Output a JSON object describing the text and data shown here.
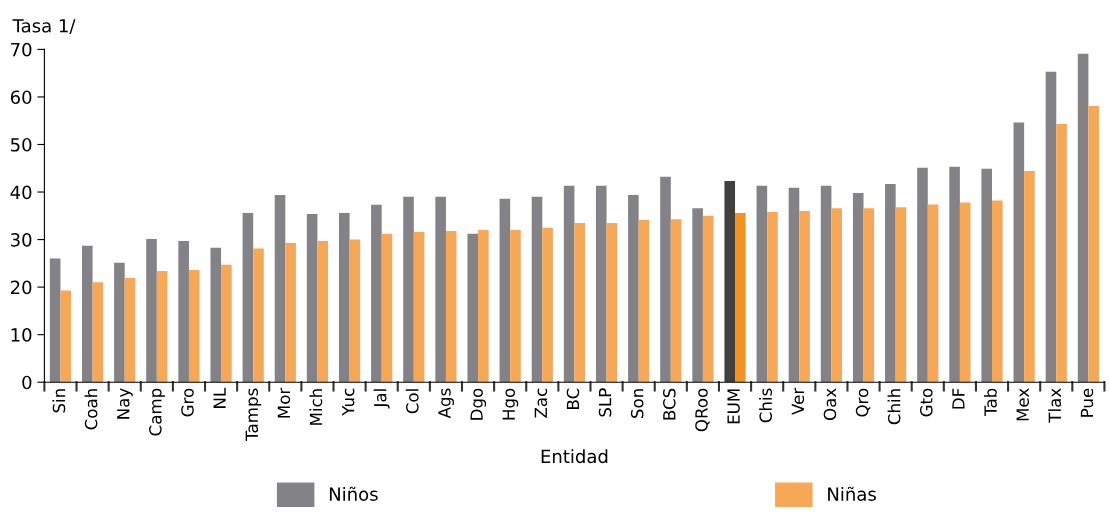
{
  "chart_data": {
    "type": "bar",
    "ylabel": "Tasa 1/",
    "xlabel": "Entidad",
    "categories": [
      "Sin",
      "Coah",
      "Nay",
      "Camp",
      "Gro",
      "NL",
      "Tamps",
      "Mor",
      "Mich",
      "Yuc",
      "Jal",
      "Col",
      "Ags",
      "Dgo",
      "Hgo",
      "Zac",
      "BC",
      "SLP",
      "Son",
      "BCS",
      "QRoo",
      "EUM",
      "Chis",
      "Ver",
      "Oax",
      "Qro",
      "Chih",
      "Gto",
      "DF",
      "Tab",
      "Mex",
      "Tlax",
      "Pue"
    ],
    "series": [
      {
        "name": "Niños",
        "color": "#838387",
        "colors": [
          "#838387",
          "#838387",
          "#838387",
          "#838387",
          "#838387",
          "#838387",
          "#838387",
          "#838387",
          "#838387",
          "#838387",
          "#838387",
          "#838387",
          "#838387",
          "#838387",
          "#838387",
          "#838387",
          "#838387",
          "#838387",
          "#838387",
          "#838387",
          "#838387",
          "#404040",
          "#838387",
          "#838387",
          "#838387",
          "#838387",
          "#838387",
          "#838387",
          "#838387",
          "#838387",
          "#838387",
          "#838387",
          "#838387"
        ],
        "values": [
          26,
          28.7,
          25.1,
          30.1,
          29.7,
          28.3,
          35.6,
          39.4,
          35.4,
          35.6,
          37.3,
          39,
          39,
          31.2,
          38.6,
          39,
          41.3,
          41.3,
          39.4,
          43.2,
          36.6,
          42.3,
          41.3,
          40.9,
          41.3,
          39.8,
          41.7,
          45.1,
          45.3,
          44.9,
          54.6,
          65.3,
          69.1
        ]
      },
      {
        "name": "Niñas",
        "color": "#f7a857",
        "colors": [
          "#f7a857",
          "#f7a857",
          "#f7a857",
          "#f7a857",
          "#f7a857",
          "#f7a857",
          "#f7a857",
          "#f7a857",
          "#f7a857",
          "#f7a857",
          "#f7a857",
          "#f7a857",
          "#f7a857",
          "#f7a857",
          "#f7a857",
          "#f7a857",
          "#f7a857",
          "#f7a857",
          "#f7a857",
          "#f7a857",
          "#f7a857",
          "#f39322",
          "#f7a857",
          "#f7a857",
          "#f7a857",
          "#f7a857",
          "#f7a857",
          "#f7a857",
          "#f7a857",
          "#f7a857",
          "#f7a857",
          "#f7a857",
          "#f7a857"
        ],
        "values": [
          19.3,
          21,
          21.9,
          23.4,
          23.6,
          24.7,
          28.1,
          29.3,
          29.7,
          30,
          31.2,
          31.6,
          31.8,
          32,
          32,
          32.5,
          33.5,
          33.5,
          34.1,
          34.3,
          35,
          35.6,
          35.8,
          36,
          36.6,
          36.6,
          36.8,
          37.4,
          37.8,
          38.2,
          44.4,
          54.3,
          58.1
        ]
      }
    ],
    "ylim": [
      0,
      70
    ],
    "yticks": [
      0,
      10,
      20,
      30,
      40,
      50,
      60,
      70
    ],
    "grid": false,
    "legend": "bottom"
  }
}
